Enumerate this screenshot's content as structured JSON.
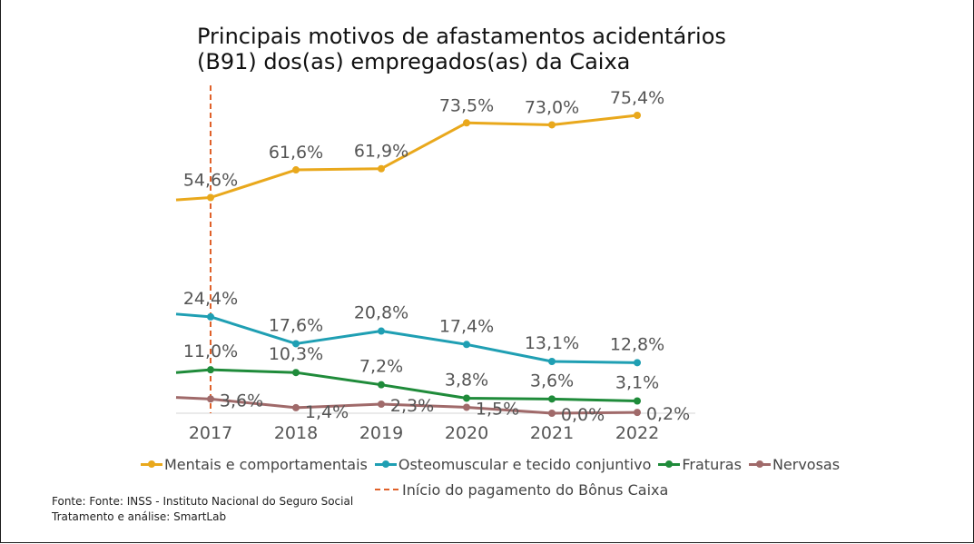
{
  "chart_data": {
    "type": "line",
    "title_line1": "Principais motivos de afastamentos acidentários",
    "title_line2": "(B91) dos(as) empregados(as) da Caixa",
    "categories": [
      "2017",
      "2018",
      "2019",
      "2020",
      "2021",
      "2022"
    ],
    "ylim": [
      0,
      80
    ],
    "grid": false,
    "series": [
      {
        "name": "Mentais e comportamentais",
        "color": "#e9a81c",
        "values": [
          54.6,
          61.6,
          61.9,
          73.5,
          73.0,
          75.4
        ],
        "labels": [
          "54,6%",
          "61,6%",
          "61,9%",
          "73,5%",
          "73,0%",
          "75,4%"
        ],
        "lead_in": 54.0
      },
      {
        "name": "Osteomuscular e tecido conjuntivo",
        "color": "#1f9fb3",
        "values": [
          24.4,
          17.6,
          20.8,
          17.4,
          13.1,
          12.8
        ],
        "labels": [
          "24,4%",
          "17,6%",
          "20,8%",
          "17,4%",
          "13,1%",
          "12,8%"
        ],
        "lead_in": 25.1
      },
      {
        "name": "Fraturas",
        "color": "#1f8b3a",
        "values": [
          11.0,
          10.3,
          7.2,
          3.8,
          3.6,
          3.1
        ],
        "labels": [
          "11,0%",
          "10,3%",
          "7,2%",
          "3,8%",
          "3,6%",
          "3,1%"
        ],
        "lead_in": 10.3
      },
      {
        "name": "Nervosas",
        "color": "#a06a6a",
        "values": [
          3.6,
          1.4,
          2.3,
          1.5,
          0.0,
          0.2
        ],
        "labels": [
          "3,6%",
          "1,4%",
          "2,3%",
          "1,5%",
          "0,0%",
          "0,2%"
        ],
        "lead_in": 4.0
      }
    ],
    "annotation": {
      "label": "Início do pagamento do Bônus Caixa",
      "at_category": "2017",
      "color": "#e0612a"
    },
    "legend_position": "bottom"
  },
  "source": {
    "line1": "Fonte: Fonte: INSS - Instituto Nacional do Seguro Social",
    "line2": "Tratamento e análise: SmartLab"
  }
}
